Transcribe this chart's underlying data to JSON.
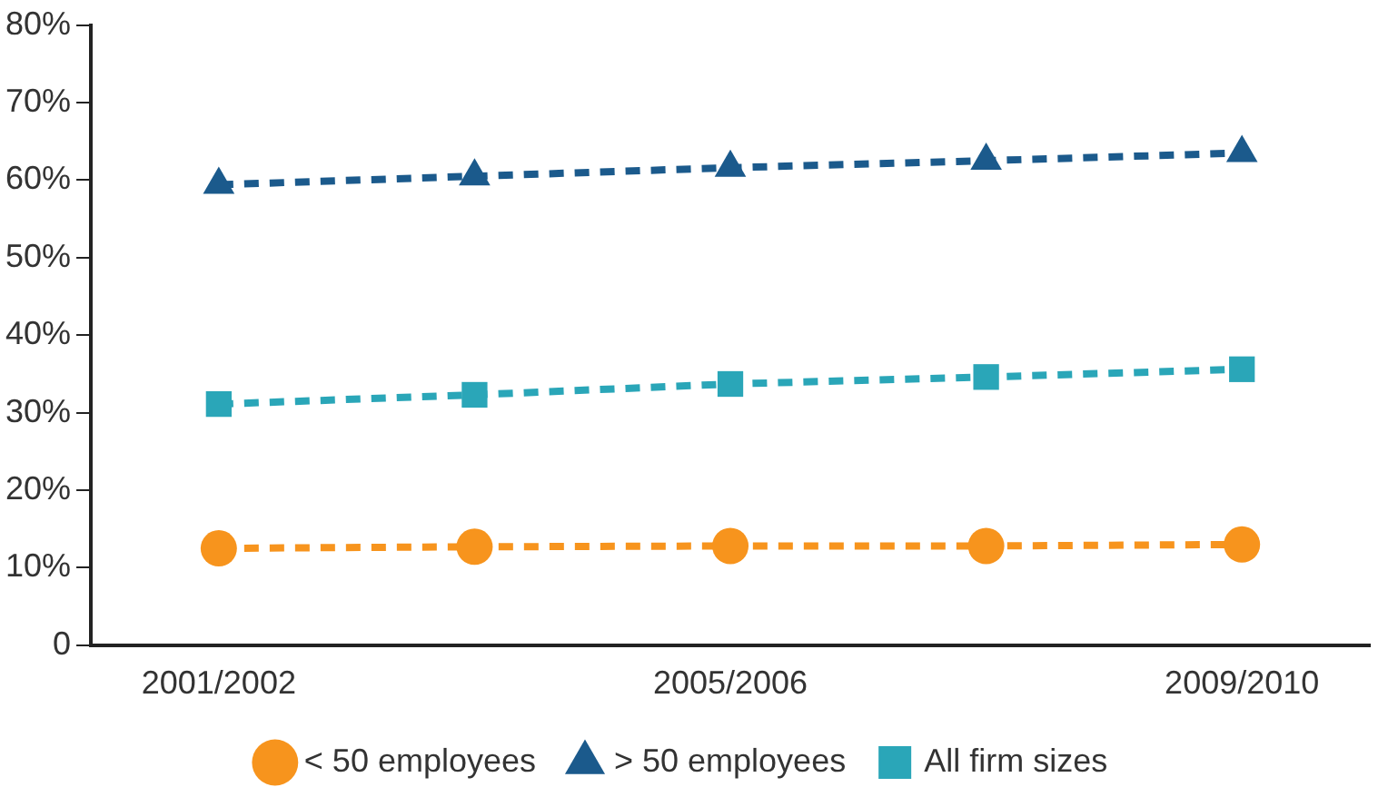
{
  "chart_data": {
    "type": "line",
    "categories": [
      "2001/2002",
      null,
      "2005/2006",
      null,
      "2009/2010"
    ],
    "series": [
      {
        "name": "< 50 employees",
        "color": "#f7941d",
        "marker": "circle",
        "values": [
          12.5,
          12.7,
          12.8,
          12.8,
          13
        ]
      },
      {
        "name": "> 50 employees",
        "color": "#1b5a8c",
        "marker": "triangle",
        "values": [
          59.4,
          60.5,
          61.6,
          62.5,
          63.5
        ]
      },
      {
        "name": "All firm sizes",
        "color": "#2aa6b8",
        "marker": "square",
        "values": [
          31.1,
          32.3,
          33.7,
          34.6,
          35.6
        ]
      }
    ],
    "ylim": [
      0,
      80
    ],
    "yticks": [
      0,
      {
        "value": 10,
        "label": "10%"
      },
      {
        "value": 20,
        "label": "20%"
      },
      {
        "value": 30,
        "label": "30%"
      },
      {
        "value": 40,
        "label": "40%"
      },
      {
        "value": 50,
        "label": "50%"
      },
      {
        "value": 60,
        "label": "60%"
      },
      {
        "value": 70,
        "label": "70%"
      },
      {
        "value": 80,
        "label": "80%"
      }
    ],
    "grid": false,
    "legend": "bottom",
    "line_style": "dashed"
  }
}
